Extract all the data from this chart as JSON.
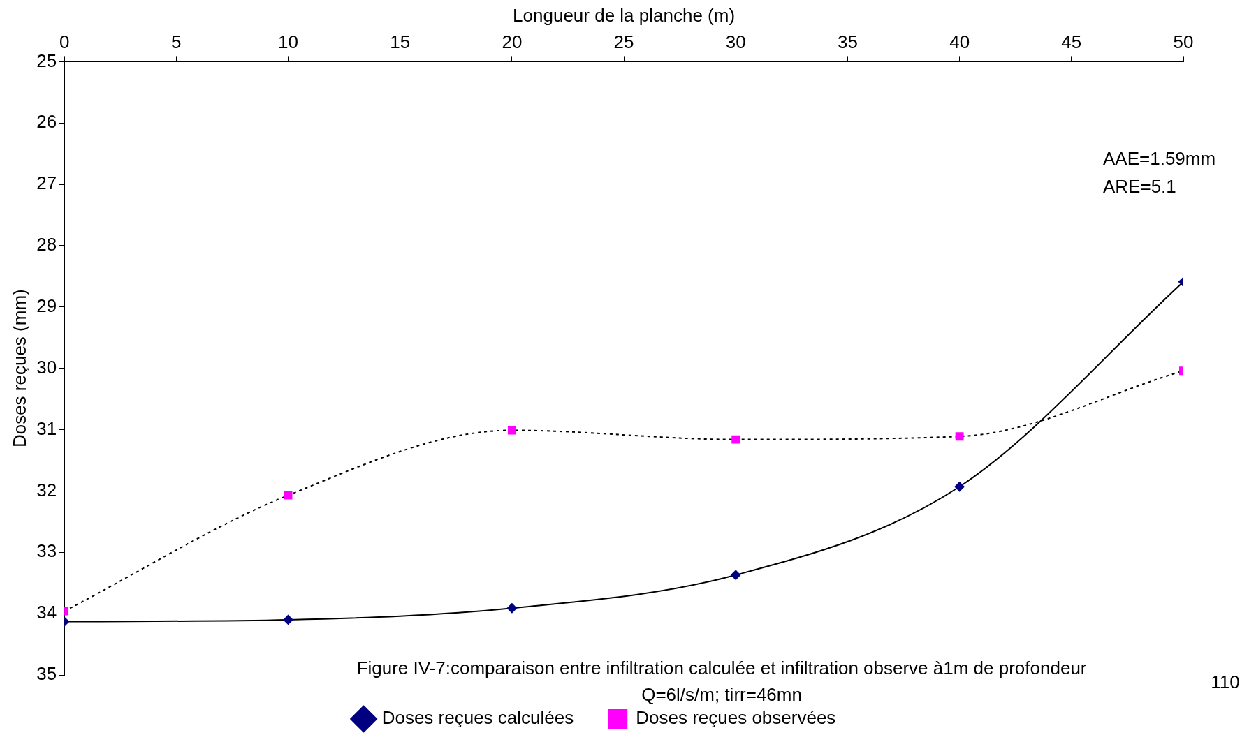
{
  "chart_data": {
    "type": "line",
    "xlabel": "Longueur de la planche (m)",
    "ylabel": "Doses reçues (mm)",
    "x": [
      0,
      10,
      20,
      30,
      40,
      50
    ],
    "series": [
      {
        "name": "Doses reçues calculées",
        "color": "#000080",
        "values": [
          34.13,
          34.1,
          33.91,
          33.37,
          31.93,
          28.59
        ],
        "marker": "diamond",
        "line_style": "solid"
      },
      {
        "name": "Doses reçues observées",
        "color": "#ff00ff",
        "values": [
          33.96,
          32.07,
          31.01,
          31.16,
          31.11,
          30.04
        ],
        "marker": "square",
        "line_style": "dotted"
      }
    ],
    "xlim": [
      0,
      50
    ],
    "xticks": [
      0,
      5,
      10,
      15,
      20,
      25,
      30,
      35,
      40,
      45,
      50
    ],
    "ylim": [
      35,
      25
    ],
    "yticks": [
      25,
      26,
      27,
      28,
      29,
      30,
      31,
      32,
      33,
      34,
      35
    ],
    "grid": false,
    "legend": "bottom",
    "annotations": [
      "AAE=1.59mm",
      "ARE=5.1",
      "Figure IV-7:comparaison entre infiltration calculée et infiltration observe à1m de profondeur",
      "Q=6l/s/m; tirr=46mn",
      "110"
    ]
  }
}
